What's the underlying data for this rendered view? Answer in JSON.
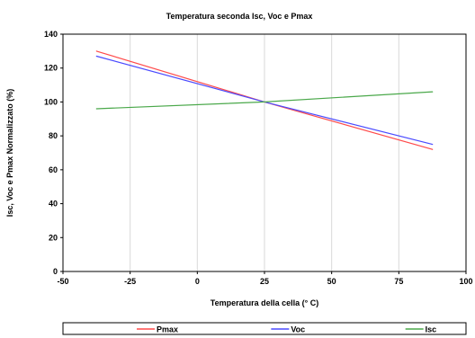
{
  "chart_data": {
    "type": "line",
    "title": "Temperatura seconda Isc, Voc e Pmax",
    "xlabel": "Temperatura della cella (° C)",
    "ylabel": "Isc, Voc e Pmax Normalizzato (%)",
    "xlim": [
      -50,
      100
    ],
    "ylim": [
      0,
      140
    ],
    "xticks": [
      -50,
      -25,
      0,
      25,
      50,
      75,
      100
    ],
    "yticks": [
      0,
      20,
      40,
      60,
      80,
      100,
      120,
      140
    ],
    "grid": "vertical",
    "legend_position": "bottom",
    "x": [
      -37.5,
      25,
      87.5
    ],
    "series": [
      {
        "name": "Pmax",
        "color": "#ff4a4a",
        "values": [
          130,
          100,
          72
        ]
      },
      {
        "name": "Voc",
        "color": "#4a4aff",
        "values": [
          127,
          100,
          75
        ]
      },
      {
        "name": "Isc",
        "color": "#4aa84a",
        "values": [
          96,
          100,
          106
        ]
      }
    ]
  }
}
